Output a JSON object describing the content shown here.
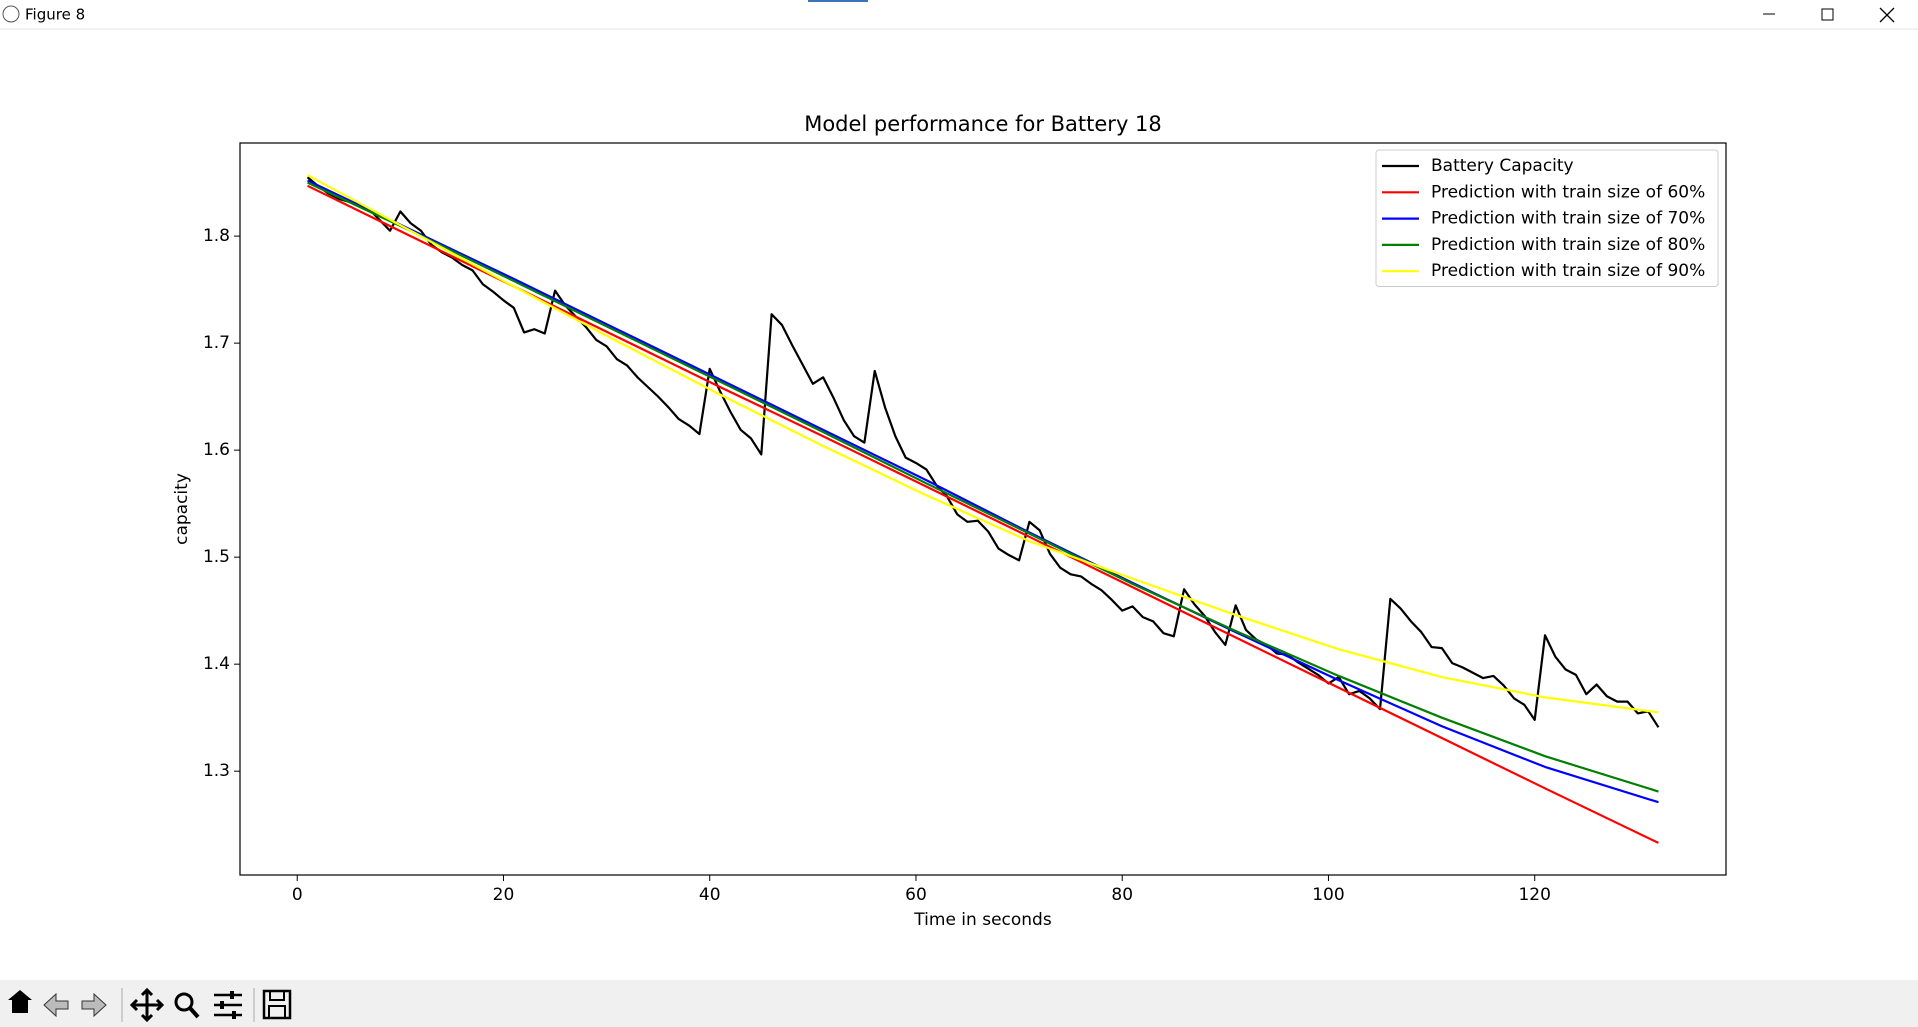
{
  "window": {
    "title": "Figure 8"
  },
  "chart_data": {
    "type": "line",
    "title": "Model performance for Battery 18",
    "xlabel": "Time in seconds",
    "ylabel": "capacity",
    "xlim": [
      -5.55,
      138.55
    ],
    "ylim": [
      1.203,
      1.887
    ],
    "xticks": [
      0,
      20,
      40,
      60,
      80,
      100,
      120
    ],
    "yticks": [
      1.3,
      1.4,
      1.5,
      1.6,
      1.7,
      1.8
    ],
    "grid": false,
    "legend": "upper right",
    "series": [
      {
        "name": "Battery Capacity",
        "color": "#000000",
        "x": [
          1,
          2,
          3,
          4,
          5,
          6,
          7,
          8,
          9,
          10,
          11,
          12,
          13,
          14,
          15,
          16,
          17,
          18,
          19,
          20,
          21,
          22,
          23,
          24,
          25,
          26,
          27,
          28,
          29,
          30,
          31,
          32,
          33,
          34,
          35,
          36,
          37,
          38,
          39,
          40,
          41,
          42,
          43,
          44,
          45,
          46,
          47,
          48,
          49,
          50,
          51,
          52,
          53,
          54,
          55,
          56,
          57,
          58,
          59,
          60,
          61,
          62,
          63,
          64,
          65,
          66,
          67,
          68,
          69,
          70,
          71,
          72,
          73,
          74,
          75,
          76,
          77,
          78,
          79,
          80,
          81,
          82,
          83,
          84,
          85,
          86,
          87,
          88,
          89,
          90,
          91,
          92,
          93,
          94,
          95,
          96,
          97,
          98,
          99,
          100,
          101,
          102,
          103,
          104,
          105,
          106,
          107,
          108,
          109,
          110,
          111,
          112,
          113,
          114,
          115,
          116,
          117,
          118,
          119,
          120,
          121,
          122,
          123,
          124,
          125,
          126,
          127,
          128,
          129,
          130,
          131,
          132
        ],
        "values": [
          1.855,
          1.847,
          1.84,
          1.835,
          1.832,
          1.83,
          1.825,
          1.815,
          1.805,
          1.823,
          1.812,
          1.805,
          1.792,
          1.785,
          1.78,
          1.773,
          1.768,
          1.755,
          1.748,
          1.74,
          1.733,
          1.71,
          1.713,
          1.709,
          1.749,
          1.735,
          1.725,
          1.715,
          1.703,
          1.697,
          1.685,
          1.679,
          1.668,
          1.659,
          1.65,
          1.64,
          1.629,
          1.623,
          1.615,
          1.676,
          1.655,
          1.636,
          1.619,
          1.611,
          1.596,
          1.727,
          1.717,
          1.698,
          1.68,
          1.662,
          1.668,
          1.649,
          1.628,
          1.613,
          1.607,
          1.674,
          1.64,
          1.613,
          1.593,
          1.588,
          1.582,
          1.567,
          1.557,
          1.54,
          1.533,
          1.534,
          1.524,
          1.508,
          1.502,
          1.497,
          1.533,
          1.525,
          1.503,
          1.49,
          1.484,
          1.482,
          1.475,
          1.469,
          1.46,
          1.45,
          1.454,
          1.444,
          1.44,
          1.429,
          1.426,
          1.47,
          1.456,
          1.445,
          1.43,
          1.418,
          1.455,
          1.432,
          1.423,
          1.418,
          1.41,
          1.409,
          1.402,
          1.396,
          1.39,
          1.382,
          1.388,
          1.372,
          1.375,
          1.368,
          1.358,
          1.461,
          1.452,
          1.44,
          1.43,
          1.416,
          1.415,
          1.401,
          1.397,
          1.392,
          1.387,
          1.389,
          1.38,
          1.368,
          1.362,
          1.348,
          1.427,
          1.407,
          1.395,
          1.39,
          1.372,
          1.381,
          1.37,
          1.365,
          1.365,
          1.354,
          1.356,
          1.341
        ]
      },
      {
        "name": "Prediction with train size of 60%",
        "color": "#ff0000",
        "x": [
          1,
          11,
          21,
          31,
          41,
          51,
          61,
          71,
          81,
          91,
          101,
          111,
          121,
          132
        ],
        "values": [
          1.847,
          1.8,
          1.753,
          1.706,
          1.659,
          1.613,
          1.566,
          1.519,
          1.472,
          1.425,
          1.378,
          1.331,
          1.284,
          1.233
        ]
      },
      {
        "name": "Prediction with train size of 70%",
        "color": "#0000ff",
        "x": [
          1,
          11,
          21,
          31,
          41,
          51,
          61,
          71,
          81,
          91,
          101,
          111,
          121,
          132
        ],
        "values": [
          1.852,
          1.806,
          1.76,
          1.713,
          1.666,
          1.619,
          1.572,
          1.523,
          1.476,
          1.43,
          1.385,
          1.342,
          1.304,
          1.271
        ]
      },
      {
        "name": "Prediction with train size of 80%",
        "color": "#008000",
        "x": [
          1,
          11,
          21,
          31,
          41,
          51,
          61,
          71,
          81,
          91,
          101,
          111,
          121,
          132
        ],
        "values": [
          1.85,
          1.805,
          1.758,
          1.711,
          1.664,
          1.617,
          1.569,
          1.522,
          1.475,
          1.431,
          1.389,
          1.35,
          1.314,
          1.281
        ]
      },
      {
        "name": "Prediction with train size of 90%",
        "color": "#ffff00",
        "x": [
          1,
          11,
          21,
          31,
          41,
          51,
          61,
          71,
          81,
          91,
          101,
          111,
          121,
          132
        ],
        "values": [
          1.857,
          1.805,
          1.753,
          1.702,
          1.652,
          1.604,
          1.558,
          1.515,
          1.48,
          1.446,
          1.414,
          1.388,
          1.369,
          1.355
        ]
      }
    ]
  }
}
